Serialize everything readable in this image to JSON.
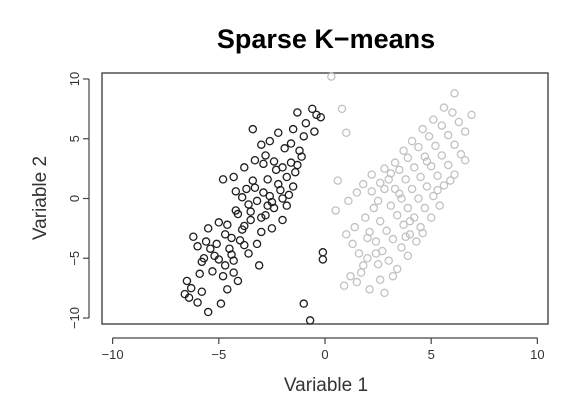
{
  "chart_data": {
    "type": "scatter",
    "title": "Sparse K−means",
    "xlabel": "Variable 1",
    "ylabel": "Variable 2",
    "xlim": [
      -10.5,
      10.5
    ],
    "ylim": [
      -10.5,
      10.5
    ],
    "xticks": [
      {
        "value": -10,
        "label": "−10"
      },
      {
        "value": -5,
        "label": "−5"
      },
      {
        "value": 0,
        "label": "0"
      },
      {
        "value": 5,
        "label": "5"
      },
      {
        "value": 10,
        "label": "10"
      }
    ],
    "yticks": [
      {
        "value": -10,
        "label": "−10"
      },
      {
        "value": -5,
        "label": "−5"
      },
      {
        "value": 0,
        "label": "0"
      },
      {
        "value": 5,
        "label": "5"
      },
      {
        "value": 10,
        "label": "10"
      }
    ],
    "grid": false,
    "legend": false,
    "series": [
      {
        "color": "#1e1e1e",
        "marker": "open-circle",
        "points": [
          [
            -6.6,
            -8.0
          ],
          [
            -6.4,
            -8.3
          ],
          [
            -6.3,
            -7.5
          ],
          [
            -6.0,
            -8.7
          ],
          [
            -5.8,
            -7.8
          ],
          [
            -5.5,
            -9.5
          ],
          [
            -5.9,
            -6.3
          ],
          [
            -6.0,
            -4.0
          ],
          [
            -5.6,
            -3.6
          ],
          [
            -5.8,
            -5.3
          ],
          [
            -5.2,
            -4.8
          ],
          [
            -4.8,
            -6.5
          ],
          [
            -4.6,
            -7.6
          ],
          [
            -4.9,
            -8.8
          ],
          [
            -4.3,
            -6.2
          ],
          [
            -6.2,
            -3.2
          ],
          [
            -5.5,
            -2.5
          ],
          [
            -5.0,
            -2.0
          ],
          [
            -4.7,
            -3.0
          ],
          [
            -4.5,
            -4.2
          ],
          [
            -4.3,
            -5.2
          ],
          [
            -4.0,
            -3.5
          ],
          [
            -3.8,
            -2.3
          ],
          [
            -4.2,
            -1.0
          ],
          [
            -3.6,
            -0.5
          ],
          [
            -3.5,
            -1.8
          ],
          [
            -3.2,
            -3.8
          ],
          [
            -3.0,
            -2.8
          ],
          [
            -2.8,
            -1.4
          ],
          [
            -2.6,
            0.2
          ],
          [
            -2.4,
            -0.8
          ],
          [
            -2.2,
            1.2
          ],
          [
            -2.0,
            0.0
          ],
          [
            -1.8,
            1.8
          ],
          [
            -1.6,
            3.0
          ],
          [
            -1.4,
            2.2
          ],
          [
            -1.2,
            4.0
          ],
          [
            -1.0,
            5.2
          ],
          [
            -1.5,
            5.8
          ],
          [
            -1.3,
            7.2
          ],
          [
            -0.6,
            7.5
          ],
          [
            -0.4,
            7.0
          ],
          [
            -0.2,
            6.8
          ],
          [
            -0.9,
            6.3
          ],
          [
            -0.5,
            5.6
          ],
          [
            -4.8,
            1.6
          ],
          [
            -4.3,
            1.8
          ],
          [
            -3.8,
            2.6
          ],
          [
            -3.3,
            3.2
          ],
          [
            -2.9,
            2.9
          ],
          [
            -3.4,
            5.8
          ],
          [
            -3.0,
            4.5
          ],
          [
            -2.6,
            4.8
          ],
          [
            -2.2,
            5.5
          ],
          [
            -1.9,
            4.2
          ],
          [
            -4.2,
            0.6
          ],
          [
            -3.9,
            0.1
          ],
          [
            -3.3,
            0.9
          ],
          [
            -2.7,
            1.6
          ],
          [
            -2.3,
            2.4
          ],
          [
            -2.5,
            -2.5
          ],
          [
            -2.0,
            -1.8
          ],
          [
            -1.8,
            -0.6
          ],
          [
            -3.6,
            -4.6
          ],
          [
            -3.1,
            -5.6
          ],
          [
            -4.1,
            -6.9
          ],
          [
            -4.7,
            -5.6
          ],
          [
            -5.3,
            -6.1
          ],
          [
            -5.1,
            -3.8
          ],
          [
            -4.6,
            -2.2
          ],
          [
            -4.1,
            -1.3
          ],
          [
            -3.7,
            0.8
          ],
          [
            -3.4,
            1.5
          ],
          [
            -3.2,
            -0.2
          ],
          [
            -2.9,
            0.5
          ],
          [
            -2.5,
            -0.3
          ],
          [
            -2.1,
            0.7
          ],
          [
            -1.7,
            0.3
          ],
          [
            -1.5,
            1.0
          ],
          [
            -1.3,
            2.8
          ],
          [
            -1.1,
            3.5
          ],
          [
            -2.8,
            3.6
          ],
          [
            -2.4,
            3.1
          ],
          [
            -2.0,
            2.6
          ],
          [
            -1.6,
            4.6
          ],
          [
            -5.7,
            -5.0
          ],
          [
            -5.4,
            -4.2
          ],
          [
            -5.0,
            -5.1
          ],
          [
            -4.4,
            -3.3
          ],
          [
            -3.9,
            -2.6
          ],
          [
            -3.5,
            -1.1
          ],
          [
            -3.0,
            -1.6
          ],
          [
            -2.7,
            -0.6
          ],
          [
            -3.8,
            -3.9
          ],
          [
            -4.4,
            -4.7
          ],
          [
            -1.0,
            -8.8
          ],
          [
            -0.7,
            -10.2
          ],
          [
            -0.1,
            -4.5
          ],
          [
            -0.1,
            -5.1
          ],
          [
            -6.5,
            -6.9
          ]
        ]
      },
      {
        "color": "#c2c2c2",
        "marker": "open-circle",
        "points": [
          [
            0.3,
            10.2
          ],
          [
            0.8,
            7.5
          ],
          [
            1.0,
            5.5
          ],
          [
            0.6,
            1.5
          ],
          [
            0.5,
            -1.0
          ],
          [
            1.0,
            -3.0
          ],
          [
            1.3,
            -3.8
          ],
          [
            1.6,
            -4.6
          ],
          [
            1.8,
            -5.6
          ],
          [
            1.2,
            -6.5
          ],
          [
            0.9,
            -7.3
          ],
          [
            1.5,
            -7.0
          ],
          [
            2.1,
            -7.6
          ],
          [
            2.8,
            -7.9
          ],
          [
            1.4,
            -2.4
          ],
          [
            1.9,
            -1.6
          ],
          [
            2.1,
            -2.8
          ],
          [
            2.4,
            -3.6
          ],
          [
            2.7,
            -4.4
          ],
          [
            3.0,
            -5.2
          ],
          [
            3.4,
            -5.9
          ],
          [
            2.3,
            -0.8
          ],
          [
            2.6,
            -1.9
          ],
          [
            2.9,
            -2.7
          ],
          [
            3.2,
            -3.4
          ],
          [
            3.6,
            -4.1
          ],
          [
            3.9,
            -4.8
          ],
          [
            2.2,
            0.6
          ],
          [
            2.5,
            -0.2
          ],
          [
            2.8,
            0.8
          ],
          [
            3.1,
            -0.6
          ],
          [
            3.4,
            -1.4
          ],
          [
            3.7,
            -2.2
          ],
          [
            4.0,
            -3.0
          ],
          [
            4.3,
            -3.6
          ],
          [
            3.0,
            1.6
          ],
          [
            3.3,
            0.8
          ],
          [
            3.6,
            0.0
          ],
          [
            3.9,
            -0.8
          ],
          [
            4.2,
            -1.6
          ],
          [
            4.5,
            -2.4
          ],
          [
            3.5,
            2.4
          ],
          [
            3.8,
            1.6
          ],
          [
            4.1,
            0.8
          ],
          [
            4.4,
            0.0
          ],
          [
            4.7,
            -0.8
          ],
          [
            5.0,
            -1.6
          ],
          [
            3.9,
            3.4
          ],
          [
            4.2,
            2.6
          ],
          [
            4.5,
            1.8
          ],
          [
            4.8,
            1.0
          ],
          [
            5.1,
            0.2
          ],
          [
            5.4,
            -0.6
          ],
          [
            4.4,
            4.3
          ],
          [
            4.7,
            3.5
          ],
          [
            5.0,
            2.7
          ],
          [
            5.3,
            1.9
          ],
          [
            5.6,
            1.1
          ],
          [
            4.9,
            5.2
          ],
          [
            5.2,
            4.4
          ],
          [
            5.5,
            3.6
          ],
          [
            5.8,
            2.8
          ],
          [
            6.1,
            2.0
          ],
          [
            5.5,
            6.1
          ],
          [
            5.8,
            5.3
          ],
          [
            6.1,
            4.5
          ],
          [
            6.4,
            3.7
          ],
          [
            6.0,
            7.2
          ],
          [
            6.3,
            6.4
          ],
          [
            6.6,
            5.6
          ],
          [
            6.1,
            8.8
          ],
          [
            6.9,
            7.0
          ],
          [
            5.6,
            7.6
          ],
          [
            6.6,
            3.2
          ],
          [
            2.0,
            -5.0
          ],
          [
            2.5,
            -5.5
          ],
          [
            3.2,
            -6.5
          ],
          [
            1.1,
            -0.2
          ],
          [
            1.5,
            0.5
          ],
          [
            1.8,
            1.2
          ],
          [
            2.2,
            2.0
          ],
          [
            2.8,
            2.5
          ],
          [
            3.3,
            3.0
          ],
          [
            3.7,
            4.0
          ],
          [
            4.1,
            4.8
          ],
          [
            4.6,
            5.8
          ],
          [
            5.1,
            6.6
          ],
          [
            2.6,
            1.3
          ],
          [
            3.1,
            2.1
          ],
          [
            3.5,
            0.4
          ],
          [
            2.0,
            -3.3
          ],
          [
            2.4,
            -4.6
          ],
          [
            3.8,
            -3.2
          ],
          [
            4.6,
            -2.9
          ],
          [
            5.3,
            0.7
          ],
          [
            5.9,
            1.5
          ],
          [
            4.0,
            -1.9
          ],
          [
            1.7,
            -6.2
          ],
          [
            2.6,
            -6.8
          ],
          [
            4.8,
            3.1
          ]
        ]
      }
    ]
  }
}
